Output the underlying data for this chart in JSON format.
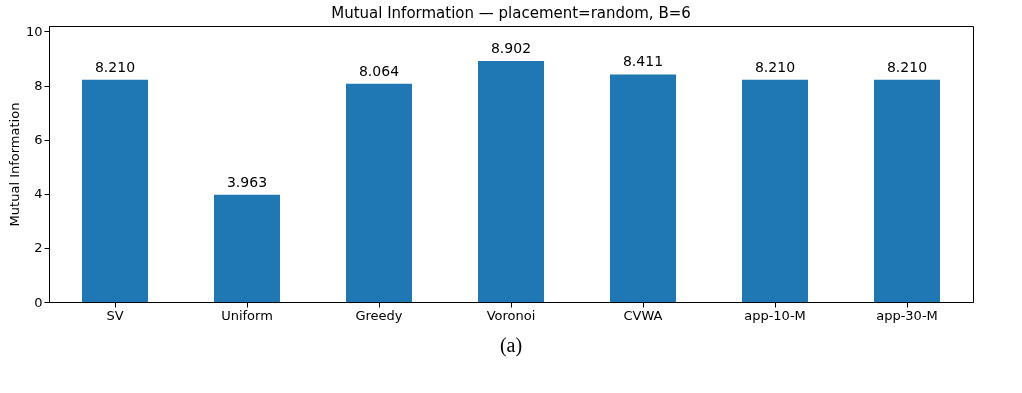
{
  "chart_data": {
    "type": "bar",
    "title": "Mutual Information — placement=random, B=6",
    "ylabel": "Mutual Information",
    "categories": [
      "SV",
      "Uniform",
      "Greedy",
      "Voronoi",
      "CVWA",
      "app-10-M",
      "app-30-M"
    ],
    "values": [
      8.21,
      3.963,
      8.064,
      8.902,
      8.411,
      8.21,
      8.21
    ],
    "value_labels": [
      "8.210",
      "3.963",
      "8.064",
      "8.902",
      "8.411",
      "8.210",
      "8.210"
    ],
    "color": "#1f77b4",
    "ylim": [
      0,
      10.2
    ],
    "yticks": [
      0,
      2,
      4,
      6,
      8,
      10
    ],
    "grid": false,
    "annotations": [
      "(a)"
    ]
  }
}
